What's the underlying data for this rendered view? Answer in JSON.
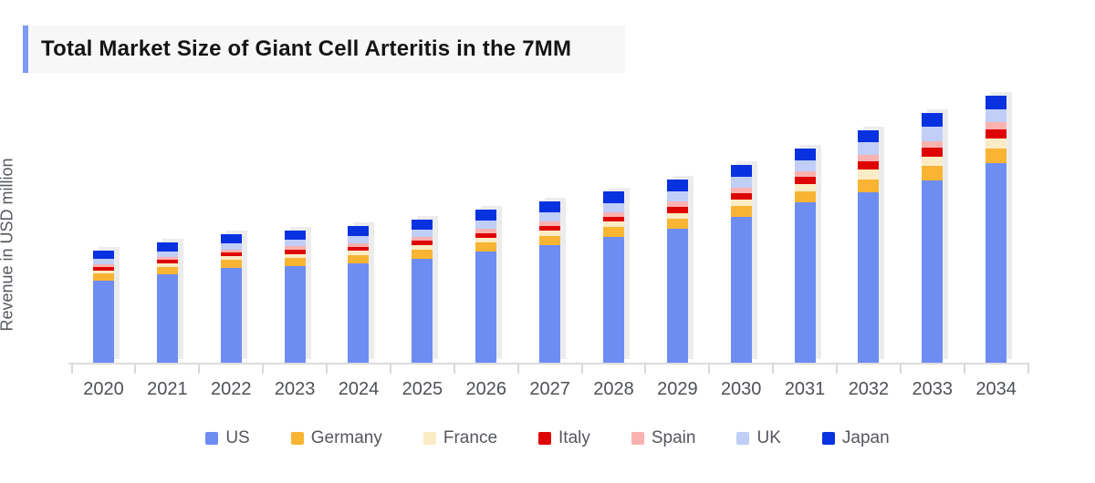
{
  "header": {
    "title": "Total Market Size of Giant Cell Arteritis in the 7MM",
    "accent_color": "#7d9af3",
    "background_color": "#f7f7f7"
  },
  "chart_data": {
    "type": "bar",
    "stacked": true,
    "title": "Total Market Size of Giant Cell Arteritis in the 7MM",
    "ylabel": "Revenue in USD million",
    "xlabel": "",
    "grid": false,
    "legend_position": "bottom",
    "y_axis_numeric_labels_visible": false,
    "value_unit": "relative units (axis shows no numeric labels; values estimated from bar pixel heights)",
    "ylim": [
      0,
      305
    ],
    "categories": [
      "2020",
      "2021",
      "2022",
      "2023",
      "2024",
      "2025",
      "2026",
      "2027",
      "2028",
      "2029",
      "2030",
      "2031",
      "2032",
      "2033",
      "2034"
    ],
    "series": [
      {
        "name": "US",
        "color": "#6d8df2",
        "values": [
          90,
          97,
          104,
          106,
          109,
          114,
          122,
          129,
          138,
          147,
          160,
          176,
          187,
          200.5,
          219
        ]
      },
      {
        "name": "Germany",
        "color": "#f9b434",
        "values": [
          8,
          8.5,
          9,
          9.5,
          9.5,
          10,
          10,
          10.5,
          11,
          11.5,
          12,
          12,
          14.5,
          16,
          16
        ]
      },
      {
        "name": "France",
        "color": "#faecc5",
        "values": [
          3.5,
          3.5,
          4,
          4,
          4.5,
          5,
          5.5,
          5.5,
          6,
          6,
          7.5,
          8,
          10.5,
          10,
          11
        ]
      },
      {
        "name": "Italy",
        "color": "#df0404",
        "values": [
          4,
          4,
          4,
          4.5,
          4.5,
          5,
          5,
          5.5,
          5.5,
          6.5,
          7,
          8,
          9,
          9.5,
          10
        ]
      },
      {
        "name": "Spain",
        "color": "#f9b2b0",
        "values": [
          3,
          3.5,
          3.5,
          4,
          4,
          4,
          4.5,
          5,
          5,
          6,
          5.5,
          6,
          7,
          7.5,
          8
        ]
      },
      {
        "name": "UK",
        "color": "#c0cef8",
        "values": [
          6,
          6,
          6.5,
          7,
          8,
          8.5,
          9.5,
          10,
          10,
          11.5,
          12,
          12.5,
          14,
          15.5,
          14
        ]
      },
      {
        "name": "Japan",
        "color": "#0831e0",
        "values": [
          9,
          9.5,
          10,
          10,
          10.5,
          10.5,
          11.5,
          12,
          12.5,
          13,
          13,
          12.5,
          13.5,
          15,
          15
        ]
      }
    ],
    "totals": [
      123.5,
      132,
      141,
      145,
      150,
      157,
      168,
      177.5,
      188,
      201.5,
      217,
      235,
      255.5,
      274,
      293
    ]
  },
  "style": {
    "axis_color": "#dcdcdc",
    "tick_color": "#d9d9d9",
    "x_label_color": "#4d5157",
    "legend_label_color": "#54575e",
    "bar_shadow_color": "#ececec"
  }
}
